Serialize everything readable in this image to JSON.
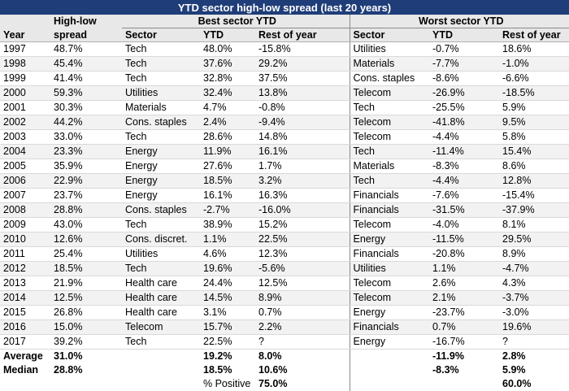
{
  "title": "YTD sector high-low spread (last 20 years)",
  "headers": {
    "spread_top": "High-low",
    "spread_bottom": "spread",
    "year": "Year",
    "best_group": "Best sector YTD",
    "worst_group": "Worst sector YTD",
    "sector": "Sector",
    "ytd": "YTD",
    "rest": "Rest of year"
  },
  "columns": [
    "Year",
    "High-low spread",
    "Best sector",
    "Best YTD",
    "Best rest of year",
    "Worst sector",
    "Worst YTD",
    "Worst rest of year"
  ],
  "rows": [
    [
      "1997",
      "48.7%",
      "Tech",
      "48.0%",
      "-15.8%",
      "Utilities",
      "-0.7%",
      "18.6%"
    ],
    [
      "1998",
      "45.4%",
      "Tech",
      "37.6%",
      "29.2%",
      "Materials",
      "-7.7%",
      "-1.0%"
    ],
    [
      "1999",
      "41.4%",
      "Tech",
      "32.8%",
      "37.5%",
      "Cons. staples",
      "-8.6%",
      "-6.6%"
    ],
    [
      "2000",
      "59.3%",
      "Utilities",
      "32.4%",
      "13.8%",
      "Telecom",
      "-26.9%",
      "-18.5%"
    ],
    [
      "2001",
      "30.3%",
      "Materials",
      "4.7%",
      "-0.8%",
      "Tech",
      "-25.5%",
      "5.9%"
    ],
    [
      "2002",
      "44.2%",
      "Cons. staples",
      "2.4%",
      "-9.4%",
      "Telecom",
      "-41.8%",
      "9.5%"
    ],
    [
      "2003",
      "33.0%",
      "Tech",
      "28.6%",
      "14.8%",
      "Telecom",
      "-4.4%",
      "5.8%"
    ],
    [
      "2004",
      "23.3%",
      "Energy",
      "11.9%",
      "16.1%",
      "Tech",
      "-11.4%",
      "15.4%"
    ],
    [
      "2005",
      "35.9%",
      "Energy",
      "27.6%",
      "1.7%",
      "Materials",
      "-8.3%",
      "8.6%"
    ],
    [
      "2006",
      "22.9%",
      "Energy",
      "18.5%",
      "3.2%",
      "Tech",
      "-4.4%",
      "12.8%"
    ],
    [
      "2007",
      "23.7%",
      "Energy",
      "16.1%",
      "16.3%",
      "Financials",
      "-7.6%",
      "-15.4%"
    ],
    [
      "2008",
      "28.8%",
      "Cons. staples",
      "-2.7%",
      "-16.0%",
      "Financials",
      "-31.5%",
      "-37.9%"
    ],
    [
      "2009",
      "43.0%",
      "Tech",
      "38.9%",
      "15.2%",
      "Telecom",
      "-4.0%",
      "8.1%"
    ],
    [
      "2010",
      "12.6%",
      "Cons. discret.",
      "1.1%",
      "22.5%",
      "Energy",
      "-11.5%",
      "29.5%"
    ],
    [
      "2011",
      "25.4%",
      "Utilities",
      "4.6%",
      "12.3%",
      "Financials",
      "-20.8%",
      "8.9%"
    ],
    [
      "2012",
      "18.5%",
      "Tech",
      "19.6%",
      "-5.6%",
      "Utilities",
      "1.1%",
      "-4.7%"
    ],
    [
      "2013",
      "21.9%",
      "Health care",
      "24.4%",
      "12.5%",
      "Telecom",
      "2.6%",
      "4.3%"
    ],
    [
      "2014",
      "12.5%",
      "Health care",
      "14.5%",
      "8.9%",
      "Telecom",
      "2.1%",
      "-3.7%"
    ],
    [
      "2015",
      "26.8%",
      "Health care",
      "3.1%",
      "0.7%",
      "Energy",
      "-23.7%",
      "-3.0%"
    ],
    [
      "2016",
      "15.0%",
      "Telecom",
      "15.7%",
      "2.2%",
      "Financials",
      "0.7%",
      "19.6%"
    ],
    [
      "2017",
      "39.2%",
      "Tech",
      "22.5%",
      "?",
      "Energy",
      "-16.7%",
      "?"
    ]
  ],
  "summary": {
    "average": {
      "label": "Average",
      "spread": "31.0%",
      "best_ytd": "19.2%",
      "best_rest": "8.0%",
      "worst_ytd": "-11.9%",
      "worst_rest": "2.8%"
    },
    "median": {
      "label": "Median",
      "spread": "28.8%",
      "best_ytd": "18.5%",
      "best_rest": "10.6%",
      "worst_ytd": "-8.3%",
      "worst_rest": "5.9%"
    },
    "positive": {
      "label": "% Positive",
      "best_rest": "75.0%",
      "worst_rest": "60.0%"
    }
  },
  "colors": {
    "title_bg": "#1f3d78",
    "title_text": "#ffffff",
    "header_bg": "#e8e8e8",
    "alt_row": "#f2f2f2"
  }
}
